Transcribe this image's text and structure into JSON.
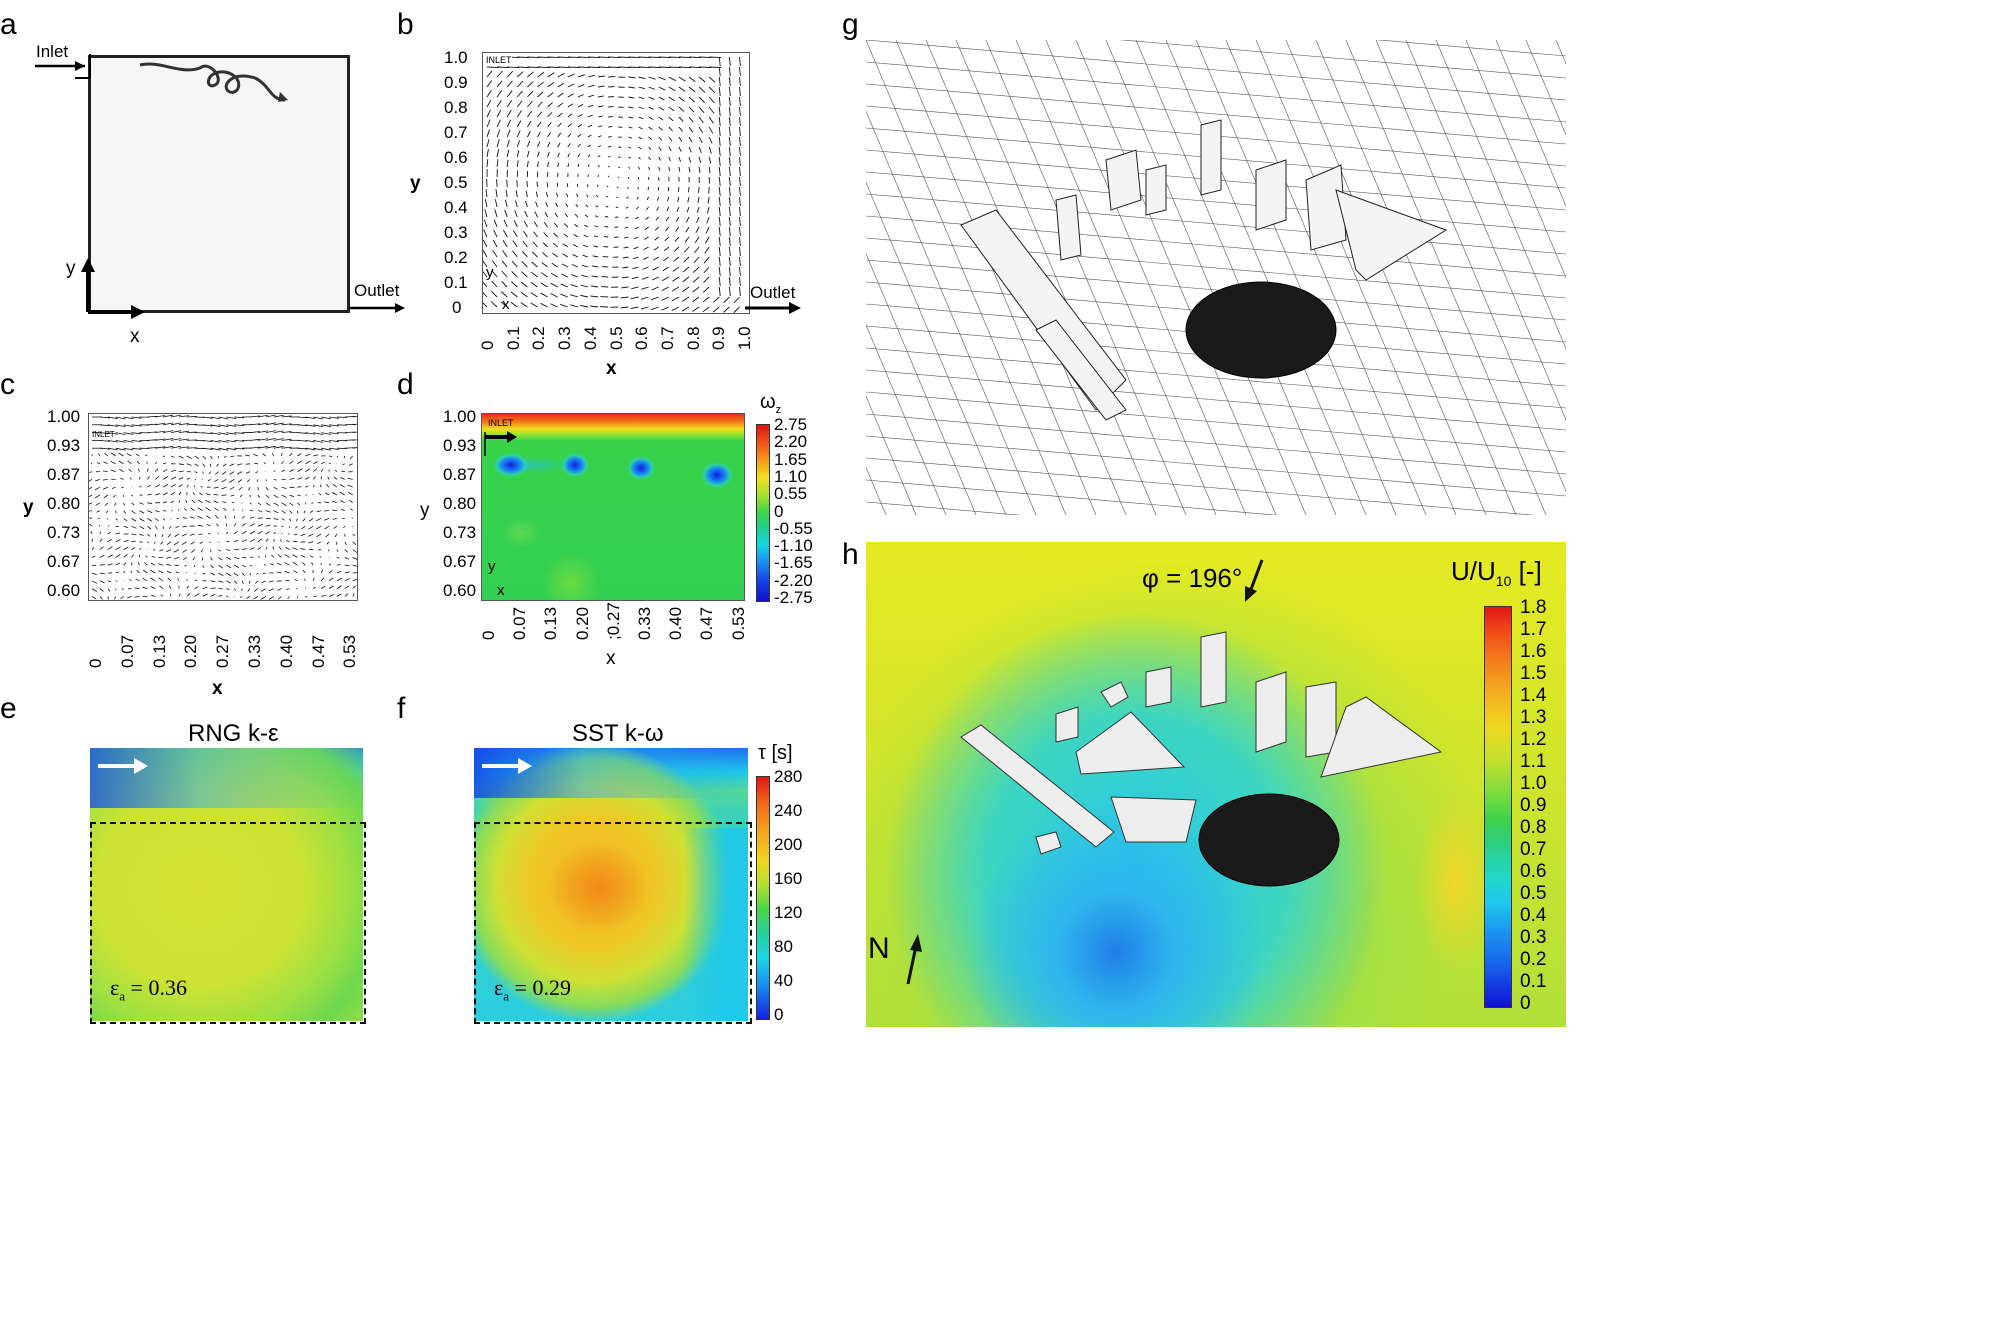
{
  "panels": {
    "a": {
      "label": "a",
      "inlet": "Inlet",
      "outlet": "Outlet",
      "x": "x",
      "y": "y"
    },
    "b": {
      "label": "b",
      "yticks": [
        "1.0",
        "0.9",
        "0.8",
        "0.7",
        "0.6",
        "0.5",
        "0.4",
        "0.3",
        "0.2",
        "0.1",
        "0"
      ],
      "xticks": [
        "0",
        "0.1",
        "0.2",
        "0.3",
        "0.4",
        "0.5",
        "0.6",
        "0.7",
        "0.8",
        "0.9",
        "1.0"
      ],
      "xlabel": "x",
      "ylabel": "y",
      "inlet": "INLET",
      "outlet": "Outlet",
      "x": "x",
      "y": "y"
    },
    "c": {
      "label": "c",
      "yticks": [
        "1.00",
        "0.93",
        "0.87",
        "0.80",
        "0.73",
        "0.67",
        "0.60"
      ],
      "xticks": [
        "0",
        "0.07",
        "0.13",
        "0.20",
        "0.27",
        "0.33",
        "0.40",
        "0.47",
        "0.53"
      ],
      "xlabel": "x",
      "ylabel": "y",
      "inlet": "INLET",
      "x": "x",
      "y": "y"
    },
    "d": {
      "label": "d",
      "yticks": [
        "1.00",
        "0.93",
        "0.87",
        "0.80",
        "0.73",
        "0.67",
        "0.60"
      ],
      "xticks": [
        "0",
        "0.07",
        "0.13",
        "0.20",
        ";0.27",
        "0.33",
        "0.40",
        "0.47",
        "0.53"
      ],
      "xlabel": "x",
      "ylabel": "y",
      "inlet": "INLET",
      "x": "x",
      "y": "y",
      "cbar_title": "ω",
      "cbar_title_sub": "z",
      "cbar_ticks": [
        "2.75",
        "2.20",
        "1.65",
        "1.10",
        "0.55",
        "0",
        "-0.55",
        "-1.10",
        "-1.65",
        "-2.20",
        "-2.75"
      ]
    },
    "e": {
      "label": "e",
      "title": "RNG k-ε",
      "eps_label": "ε",
      "eps_sub": "a",
      "eps_value": " = 0.36"
    },
    "f": {
      "label": "f",
      "title": "SST k-ω",
      "eps_label": "ε",
      "eps_sub": "a",
      "eps_value": " = 0.29",
      "cbar_title": "τ [s]",
      "cbar_ticks": [
        "280",
        "240",
        "200",
        "160",
        "120",
        "80",
        "40",
        "0"
      ]
    },
    "g": {
      "label": "g"
    },
    "h": {
      "label": "h",
      "wind": "φ = 196°",
      "north": "N",
      "cbar_title": "U/U",
      "cbar_title_sub": "10",
      "cbar_title_unit": " [-]",
      "cbar_ticks": [
        "1.8",
        "1.7",
        "1.6",
        "1.5",
        "1.4",
        "1.3",
        "1.2",
        "1.1",
        "1.0",
        "0.9",
        "0.8",
        "0.7",
        "0.6",
        "0.5",
        "0.4",
        "0.3",
        "0.2",
        "0.1",
        "0"
      ]
    }
  },
  "colors": {
    "jet_red": "#e8201a",
    "jet_yellow": "#f2ea1e",
    "jet_green": "#3fd24a",
    "jet_cyan": "#17d8f0",
    "jet_blue": "#1520e6"
  }
}
